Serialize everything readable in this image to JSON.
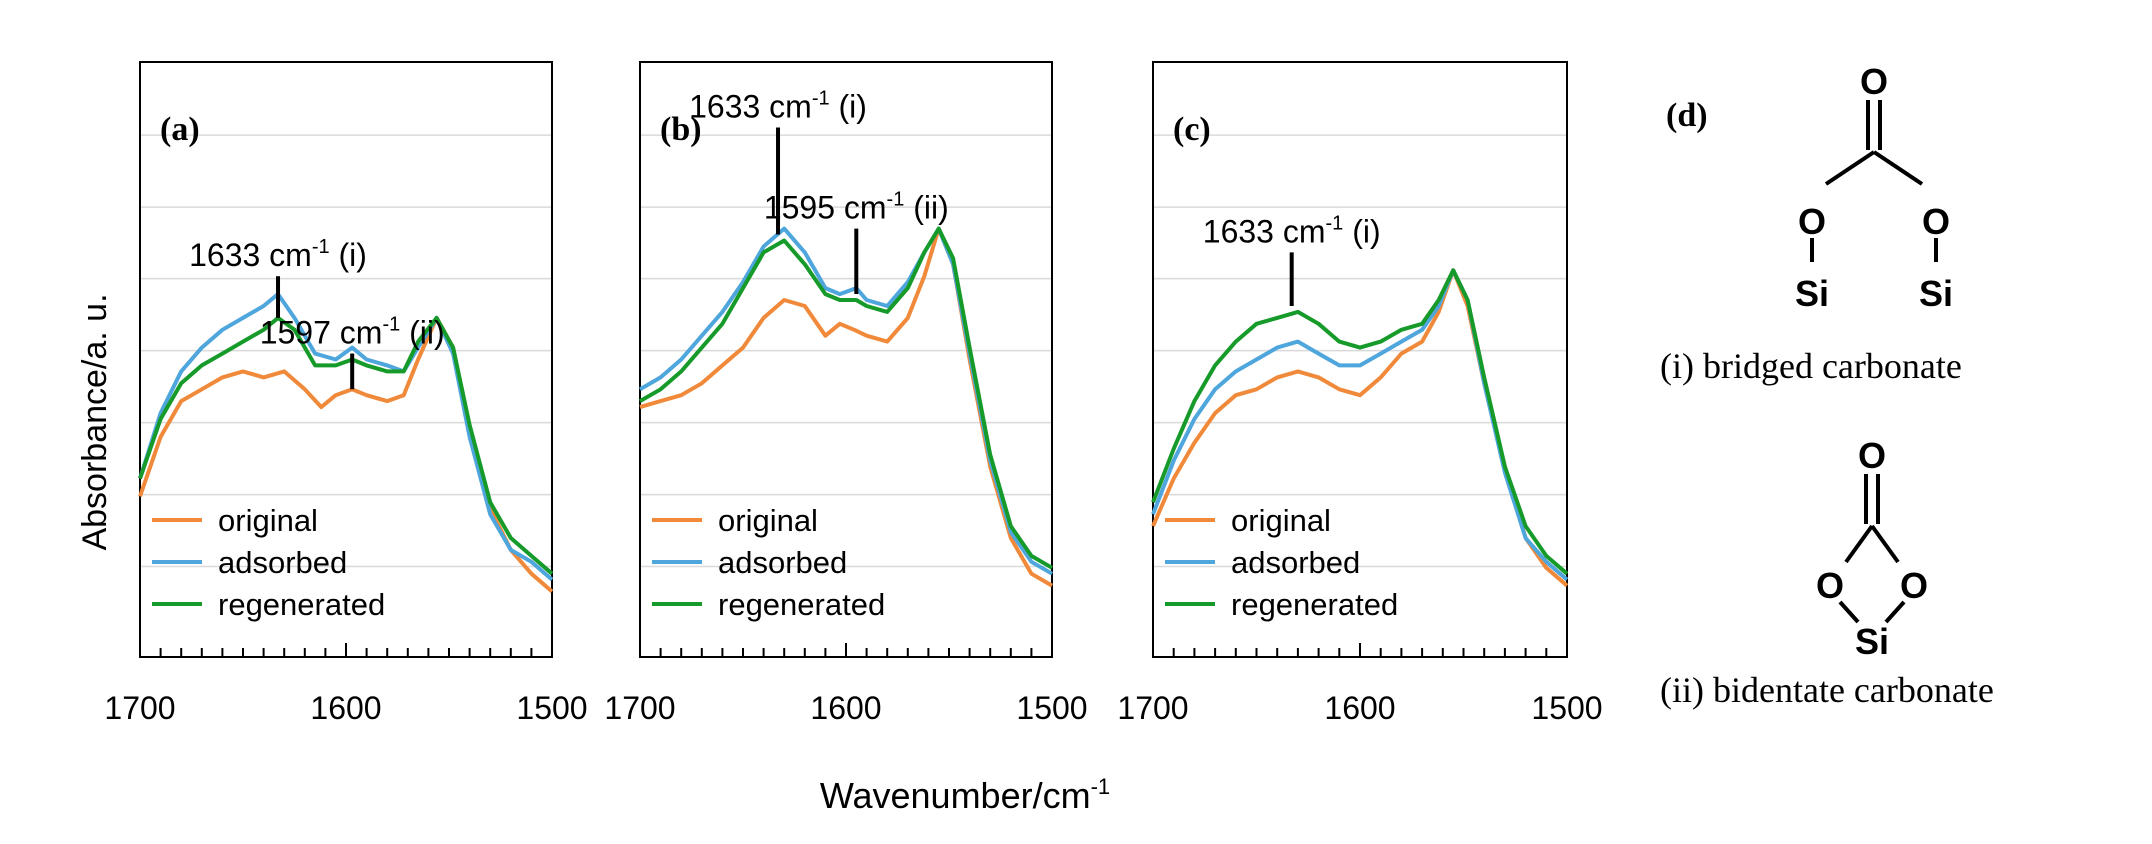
{
  "figure": {
    "ylabel": "Absorbance/a. u.",
    "xlabel": "Wavenumber/cm",
    "xlabel_sup": "-1"
  },
  "colors": {
    "original": "#f08a3a",
    "adsorbed": "#4ea6dc",
    "regenerated": "#169a2a",
    "grid": "#d9d9d9",
    "axis": "#000000"
  },
  "legend": [
    "original",
    "adsorbed",
    "regenerated"
  ],
  "chart_data": [
    {
      "panel": "(a)",
      "type": "line",
      "xlim": [
        1700,
        1500
      ],
      "ylim": [
        0,
        1
      ],
      "xticks": [
        1700,
        1600,
        1500
      ],
      "xticklabels": [
        "1700",
        "1600",
        "1500"
      ],
      "grid": true,
      "legend_position": "bottom-left",
      "annotations": [
        {
          "x": 1633,
          "y_top": 0.64,
          "y_bot": 0.57,
          "label": "1633 cm",
          "sup": "-1",
          "tag": "(i)"
        },
        {
          "x": 1597,
          "y_top": 0.51,
          "y_bot": 0.45,
          "label": "1597 cm",
          "sup": "-1",
          "tag": "(ii)"
        }
      ],
      "series": [
        {
          "name": "original",
          "x": [
            1700,
            1690,
            1680,
            1670,
            1660,
            1650,
            1640,
            1630,
            1620,
            1612,
            1605,
            1597,
            1590,
            1580,
            1572,
            1565,
            1556,
            1548,
            1540,
            1530,
            1520,
            1510,
            1500
          ],
          "y": [
            0.27,
            0.37,
            0.43,
            0.45,
            0.47,
            0.48,
            0.47,
            0.48,
            0.45,
            0.42,
            0.44,
            0.45,
            0.44,
            0.43,
            0.44,
            0.5,
            0.57,
            0.52,
            0.38,
            0.25,
            0.18,
            0.14,
            0.11
          ]
        },
        {
          "name": "adsorbed",
          "x": [
            1700,
            1690,
            1680,
            1670,
            1660,
            1650,
            1640,
            1633,
            1625,
            1615,
            1605,
            1597,
            1590,
            1580,
            1572,
            1565,
            1556,
            1548,
            1540,
            1530,
            1520,
            1510,
            1500
          ],
          "y": [
            0.3,
            0.41,
            0.48,
            0.52,
            0.55,
            0.57,
            0.59,
            0.61,
            0.57,
            0.51,
            0.5,
            0.52,
            0.5,
            0.49,
            0.48,
            0.52,
            0.57,
            0.51,
            0.37,
            0.24,
            0.18,
            0.16,
            0.13
          ]
        },
        {
          "name": "regenerated",
          "x": [
            1700,
            1690,
            1680,
            1670,
            1660,
            1650,
            1640,
            1633,
            1625,
            1615,
            1605,
            1597,
            1590,
            1580,
            1572,
            1565,
            1556,
            1548,
            1540,
            1530,
            1520,
            1510,
            1500
          ],
          "y": [
            0.3,
            0.4,
            0.46,
            0.49,
            0.51,
            0.53,
            0.55,
            0.57,
            0.55,
            0.49,
            0.49,
            0.5,
            0.49,
            0.48,
            0.48,
            0.53,
            0.57,
            0.52,
            0.39,
            0.26,
            0.2,
            0.17,
            0.14
          ]
        }
      ]
    },
    {
      "panel": "(b)",
      "type": "line",
      "xlim": [
        1700,
        1500
      ],
      "ylim": [
        0,
        1
      ],
      "xticks": [
        1700,
        1600,
        1500
      ],
      "xticklabels": [
        "1700",
        "1600",
        "1500"
      ],
      "grid": true,
      "legend_position": "bottom-left",
      "annotations": [
        {
          "x": 1633,
          "y_top": 0.89,
          "y_bot": 0.71,
          "label": "1633 cm",
          "sup": "-1",
          "tag": "(i)"
        },
        {
          "x": 1595,
          "y_top": 0.72,
          "y_bot": 0.61,
          "label": "1595 cm",
          "sup": "-1",
          "tag": "(ii)"
        }
      ],
      "series": [
        {
          "name": "original",
          "x": [
            1700,
            1690,
            1680,
            1670,
            1660,
            1650,
            1640,
            1630,
            1620,
            1610,
            1603,
            1596,
            1590,
            1580,
            1570,
            1562,
            1555,
            1548,
            1540,
            1530,
            1520,
            1510,
            1500
          ],
          "y": [
            0.42,
            0.43,
            0.44,
            0.46,
            0.49,
            0.52,
            0.57,
            0.6,
            0.59,
            0.54,
            0.56,
            0.55,
            0.54,
            0.53,
            0.57,
            0.64,
            0.72,
            0.66,
            0.5,
            0.32,
            0.2,
            0.14,
            0.12
          ]
        },
        {
          "name": "adsorbed",
          "x": [
            1700,
            1690,
            1680,
            1670,
            1660,
            1650,
            1640,
            1630,
            1620,
            1610,
            1603,
            1595,
            1590,
            1580,
            1570,
            1562,
            1555,
            1548,
            1540,
            1530,
            1520,
            1510,
            1500
          ],
          "y": [
            0.45,
            0.47,
            0.5,
            0.54,
            0.58,
            0.63,
            0.69,
            0.72,
            0.68,
            0.62,
            0.61,
            0.62,
            0.6,
            0.59,
            0.63,
            0.68,
            0.72,
            0.66,
            0.51,
            0.33,
            0.21,
            0.16,
            0.14
          ]
        },
        {
          "name": "regenerated",
          "x": [
            1700,
            1690,
            1680,
            1670,
            1660,
            1650,
            1640,
            1630,
            1620,
            1610,
            1603,
            1595,
            1590,
            1580,
            1570,
            1562,
            1555,
            1548,
            1540,
            1530,
            1520,
            1510,
            1500
          ],
          "y": [
            0.43,
            0.45,
            0.48,
            0.52,
            0.56,
            0.62,
            0.68,
            0.7,
            0.66,
            0.61,
            0.6,
            0.6,
            0.59,
            0.58,
            0.62,
            0.68,
            0.72,
            0.67,
            0.52,
            0.34,
            0.22,
            0.17,
            0.15
          ]
        }
      ]
    },
    {
      "panel": "(c)",
      "type": "line",
      "xlim": [
        1700,
        1500
      ],
      "ylim": [
        0,
        1
      ],
      "xticks": [
        1700,
        1600,
        1500
      ],
      "xticklabels": [
        "1700",
        "1600",
        "1500"
      ],
      "grid": true,
      "legend_position": "bottom-left",
      "annotations": [
        {
          "x": 1633,
          "y_top": 0.68,
          "y_bot": 0.59,
          "label": "1633 cm",
          "sup": "-1",
          "tag": "(i)"
        }
      ],
      "series": [
        {
          "name": "original",
          "x": [
            1700,
            1690,
            1680,
            1670,
            1660,
            1650,
            1640,
            1630,
            1620,
            1610,
            1600,
            1590,
            1580,
            1570,
            1562,
            1555,
            1548,
            1540,
            1530,
            1520,
            1510,
            1500
          ],
          "y": [
            0.22,
            0.3,
            0.36,
            0.41,
            0.44,
            0.45,
            0.47,
            0.48,
            0.47,
            0.45,
            0.44,
            0.47,
            0.51,
            0.53,
            0.58,
            0.65,
            0.59,
            0.46,
            0.32,
            0.2,
            0.15,
            0.12
          ]
        },
        {
          "name": "adsorbed",
          "x": [
            1700,
            1690,
            1680,
            1670,
            1660,
            1650,
            1640,
            1630,
            1620,
            1610,
            1600,
            1590,
            1580,
            1570,
            1562,
            1555,
            1548,
            1540,
            1530,
            1520,
            1510,
            1500
          ],
          "y": [
            0.24,
            0.33,
            0.4,
            0.45,
            0.48,
            0.5,
            0.52,
            0.53,
            0.51,
            0.49,
            0.49,
            0.51,
            0.53,
            0.55,
            0.59,
            0.65,
            0.6,
            0.46,
            0.31,
            0.2,
            0.16,
            0.13
          ]
        },
        {
          "name": "regenerated",
          "x": [
            1700,
            1690,
            1680,
            1670,
            1660,
            1650,
            1640,
            1630,
            1620,
            1610,
            1600,
            1590,
            1580,
            1570,
            1562,
            1555,
            1548,
            1540,
            1530,
            1520,
            1510,
            1500
          ],
          "y": [
            0.26,
            0.35,
            0.43,
            0.49,
            0.53,
            0.56,
            0.57,
            0.58,
            0.56,
            0.53,
            0.52,
            0.53,
            0.55,
            0.56,
            0.6,
            0.65,
            0.6,
            0.47,
            0.32,
            0.22,
            0.17,
            0.14
          ]
        }
      ]
    }
  ],
  "panel_d": {
    "label": "(d)",
    "structure_i": {
      "caption": "(i) bridged carbonate",
      "atoms": [
        "O",
        "O",
        "O",
        "Si",
        "Si"
      ]
    },
    "structure_ii": {
      "caption": "(ii) bidentate carbonate",
      "atoms": [
        "O",
        "O",
        "O",
        "Si"
      ]
    }
  }
}
